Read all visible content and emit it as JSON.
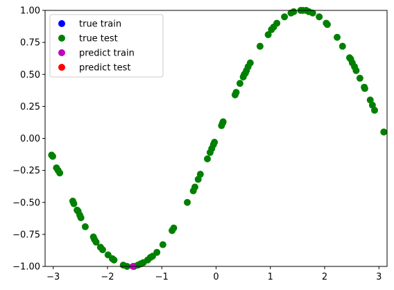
{
  "chart_data": {
    "type": "scatter",
    "title": "",
    "xlabel": "",
    "ylabel": "",
    "xlim": [
      -3.15,
      3.15
    ],
    "ylim": [
      -1.0,
      1.0
    ],
    "xticks": [
      -3,
      -2,
      -1,
      0,
      1,
      2,
      3
    ],
    "yticks": [
      -1.0,
      -0.75,
      -0.5,
      -0.25,
      0.0,
      0.25,
      0.5,
      0.75,
      1.0
    ],
    "xtick_labels": [
      "−3",
      "−2",
      "−1",
      "0",
      "1",
      "2",
      "3"
    ],
    "ytick_labels": [
      "−1.00",
      "−0.75",
      "−0.50",
      "−0.25",
      "0.00",
      "0.25",
      "0.50",
      "0.75",
      "1.00"
    ],
    "grid": false,
    "legend_position": "top-left",
    "series": [
      {
        "name": "true train",
        "color": "#0000ff",
        "points": []
      },
      {
        "name": "true test",
        "color": "#008000",
        "points": [
          [
            -3.03,
            -0.13
          ],
          [
            -3.01,
            -0.14
          ],
          [
            -2.94,
            -0.23
          ],
          [
            -2.91,
            -0.25
          ],
          [
            -2.88,
            -0.27
          ],
          [
            -2.64,
            -0.49
          ],
          [
            -2.62,
            -0.51
          ],
          [
            -2.56,
            -0.56
          ],
          [
            -2.54,
            -0.57
          ],
          [
            -2.51,
            -0.6
          ],
          [
            -2.49,
            -0.62
          ],
          [
            -2.41,
            -0.69
          ],
          [
            -2.26,
            -0.77
          ],
          [
            -2.24,
            -0.79
          ],
          [
            -2.21,
            -0.81
          ],
          [
            -2.13,
            -0.85
          ],
          [
            -2.09,
            -0.87
          ],
          [
            -1.99,
            -0.91
          ],
          [
            -1.91,
            -0.94
          ],
          [
            -1.88,
            -0.95
          ],
          [
            -1.71,
            -0.99
          ],
          [
            -1.64,
            -1.0
          ],
          [
            -1.51,
            -1.0
          ],
          [
            -1.44,
            -0.99
          ],
          [
            -1.39,
            -0.98
          ],
          [
            -1.34,
            -0.97
          ],
          [
            -1.26,
            -0.95
          ],
          [
            -1.21,
            -0.93
          ],
          [
            -1.17,
            -0.92
          ],
          [
            -1.09,
            -0.89
          ],
          [
            -0.98,
            -0.83
          ],
          [
            -0.81,
            -0.72
          ],
          [
            -0.78,
            -0.7
          ],
          [
            -0.53,
            -0.5
          ],
          [
            -0.42,
            -0.41
          ],
          [
            -0.39,
            -0.38
          ],
          [
            -0.33,
            -0.32
          ],
          [
            -0.29,
            -0.28
          ],
          [
            -0.16,
            -0.16
          ],
          [
            -0.11,
            -0.11
          ],
          [
            -0.08,
            -0.08
          ],
          [
            -0.05,
            -0.05
          ],
          [
            -0.03,
            -0.03
          ],
          [
            0.1,
            0.1
          ],
          [
            0.12,
            0.12
          ],
          [
            0.13,
            0.13
          ],
          [
            0.35,
            0.34
          ],
          [
            0.37,
            0.36
          ],
          [
            0.44,
            0.43
          ],
          [
            0.5,
            0.48
          ],
          [
            0.52,
            0.5
          ],
          [
            0.54,
            0.51
          ],
          [
            0.56,
            0.53
          ],
          [
            0.59,
            0.56
          ],
          [
            0.63,
            0.59
          ],
          [
            0.81,
            0.72
          ],
          [
            0.96,
            0.81
          ],
          [
            1.02,
            0.85
          ],
          [
            1.06,
            0.87
          ],
          [
            1.12,
            0.9
          ],
          [
            1.26,
            0.95
          ],
          [
            1.38,
            0.98
          ],
          [
            1.43,
            0.99
          ],
          [
            1.56,
            1.0
          ],
          [
            1.6,
            1.0
          ],
          [
            1.66,
            1.0
          ],
          [
            1.71,
            0.99
          ],
          [
            1.78,
            0.98
          ],
          [
            1.9,
            0.95
          ],
          [
            2.03,
            0.9
          ],
          [
            2.05,
            0.89
          ],
          [
            2.23,
            0.79
          ],
          [
            2.33,
            0.72
          ],
          [
            2.46,
            0.63
          ],
          [
            2.48,
            0.62
          ],
          [
            2.51,
            0.59
          ],
          [
            2.55,
            0.56
          ],
          [
            2.58,
            0.53
          ],
          [
            2.65,
            0.47
          ],
          [
            2.73,
            0.4
          ],
          [
            2.74,
            0.39
          ],
          [
            2.84,
            0.3
          ],
          [
            2.88,
            0.26
          ],
          [
            2.92,
            0.22
          ],
          [
            3.09,
            0.05
          ]
        ]
      },
      {
        "name": "predict train",
        "color": "#bf00bf",
        "points": [
          [
            -1.53,
            -1.0
          ]
        ]
      },
      {
        "name": "predict test",
        "color": "#ff0000",
        "points": []
      }
    ]
  }
}
